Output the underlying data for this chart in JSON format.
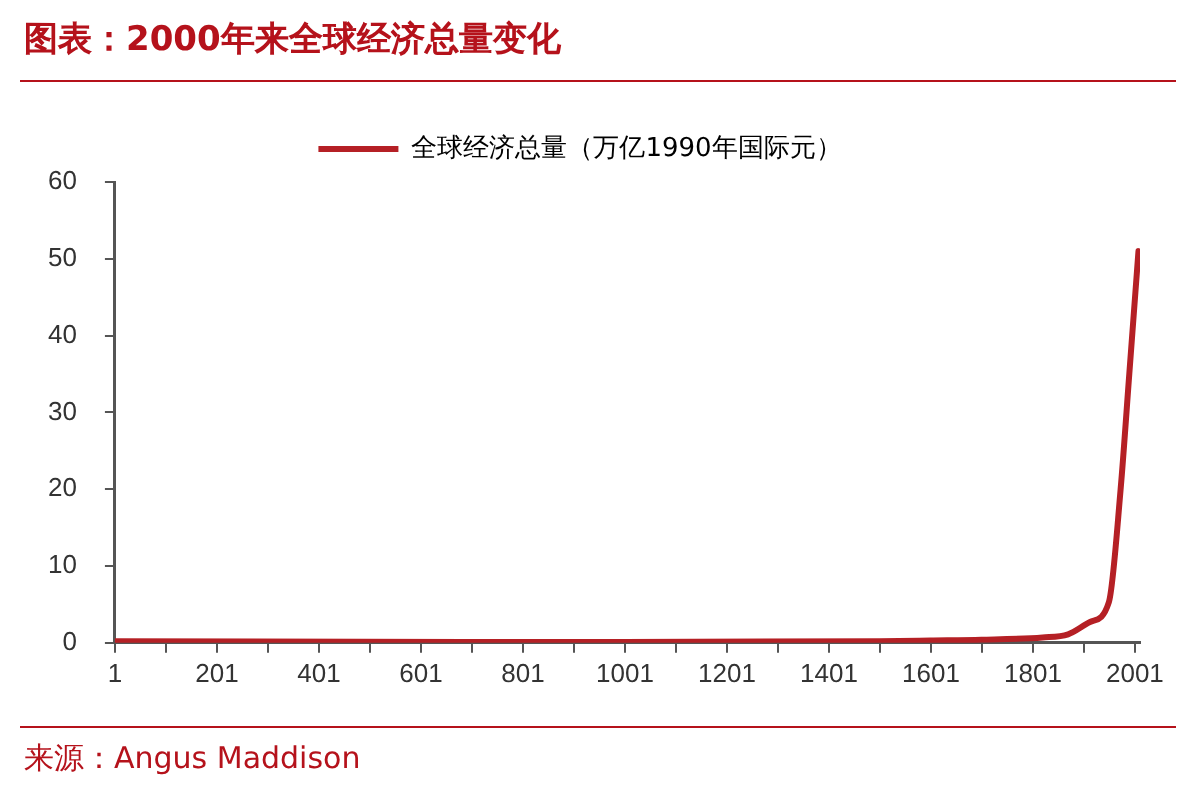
{
  "chart_data": {
    "type": "line",
    "title": "图表：2000年来全球经济总量变化",
    "annotations": [
      "来源：Angus Maddison"
    ],
    "x": [
      1,
      1000,
      1500,
      1600,
      1700,
      1820,
      1870,
      1913,
      1950,
      1973,
      1990,
      2008
    ],
    "series": [
      {
        "name": "全球经济总量（万亿1990年国际元）",
        "color": "#b52025",
        "values": [
          0.2,
          0.1,
          0.2,
          0.3,
          0.4,
          0.7,
          1.1,
          2.7,
          5.3,
          20,
          35,
          51
        ]
      }
    ],
    "xlim": [
      1,
      2011
    ],
    "xticks": [
      1,
      {
        "value": 101,
        "label": null
      },
      201,
      {
        "value": 301,
        "label": null
      },
      401,
      {
        "value": 501,
        "label": null
      },
      601,
      {
        "value": 701,
        "label": null
      },
      801,
      {
        "value": 901,
        "label": null
      },
      1001,
      {
        "value": 1101,
        "label": null
      },
      1201,
      {
        "value": 1301,
        "label": null
      },
      1401,
      {
        "value": 1501,
        "label": null
      },
      1601,
      {
        "value": 1701,
        "label": null
      },
      1801,
      {
        "value": 1901,
        "label": null
      },
      2001
    ],
    "ylim": [
      0,
      60
    ],
    "yticks": [
      0,
      10,
      20,
      30,
      40,
      50,
      60
    ],
    "grid": false,
    "legend": "top",
    "marker": "none",
    "line_style": "solid"
  }
}
